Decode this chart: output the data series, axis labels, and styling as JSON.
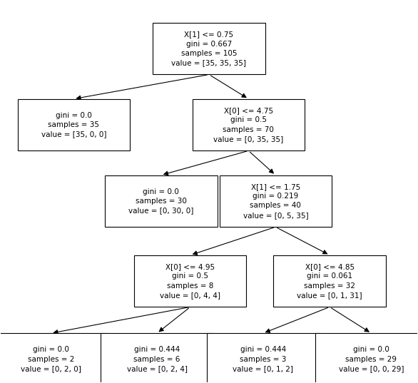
{
  "background_color": "#ffffff",
  "feature_names": [
    "X[0]",
    "X[1]"
  ],
  "n_classes": 3,
  "figsize": [
    5.86,
    5.37
  ],
  "dpi": 100,
  "tree_params": {
    "node_texts": [
      "X[1] <= 0.75\ngini = 0.667\nsamples = 105\nvalue = [35, 35, 35]",
      "gini = 0.0\nsamples = 35\nvalue = [35, 0, 0]",
      "X[0] <= 4.75\ngini = 0.5\nsamples = 70\nvalue = [0, 35, 35]",
      "gini = 0.0\nsamples = 30\nvalue = [0, 30, 0]",
      "X[1] <= 1.75\ngini = 0.219\nsamples = 40\nvalue = [0, 5, 35]",
      "X[0] <= 4.95\ngini = 0.5\nsamples = 8\nvalue = [0, 4, 4]",
      "X[0] <= 4.85\ngini = 0.061\nsamples = 32\nvalue = [0, 1, 31]",
      "gini = 0.0\nsamples = 2\nvalue = [0, 2, 0]",
      "gini = 0.444\nsamples = 6\nvalue = [0, 2, 4]",
      "gini = 0.444\nsamples = 3\nvalue = [0, 1, 2]",
      "gini = 0.0\nsamples = 29\nvalue = [0, 0, 29]"
    ]
  }
}
